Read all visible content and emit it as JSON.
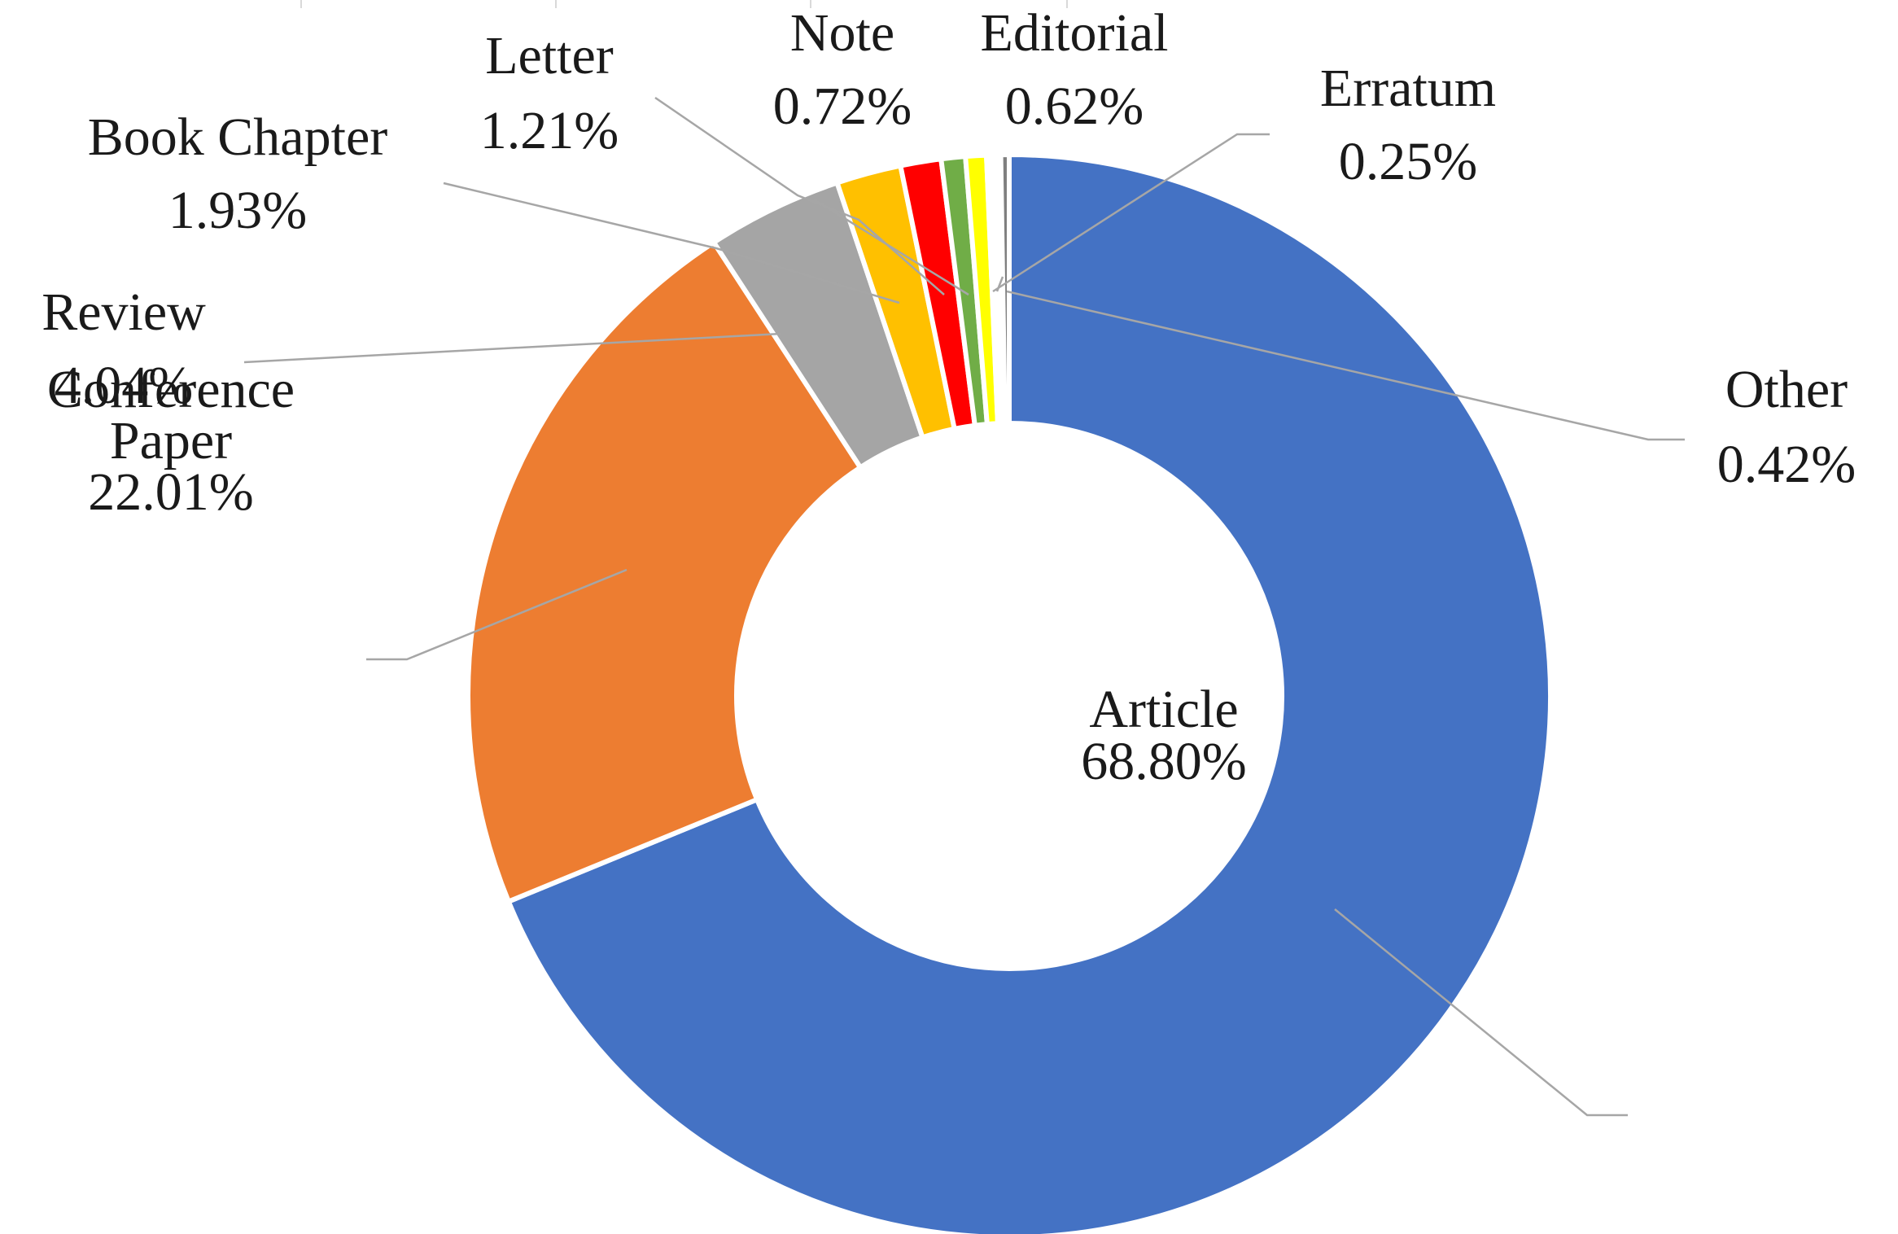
{
  "chart_data": {
    "type": "pie",
    "style": "donut",
    "slices": [
      {
        "label": "Article",
        "value": 68.8,
        "display": "68.80%",
        "color": "#4472C4"
      },
      {
        "label": "Conference Paper",
        "value": 22.01,
        "display": "22.01%",
        "color": "#ED7D31"
      },
      {
        "label": "Review",
        "value": 4.04,
        "display": "4.04%",
        "color": "#A5A5A5"
      },
      {
        "label": "Book Chapter",
        "value": 1.93,
        "display": "1.93%",
        "color": "#FFC000"
      },
      {
        "label": "Letter",
        "value": 1.21,
        "display": "1.21%",
        "color": "#FF0000"
      },
      {
        "label": "Note",
        "value": 0.72,
        "display": "0.72%",
        "color": "#70AD47"
      },
      {
        "label": "Editorial",
        "value": 0.62,
        "display": "0.62%",
        "color": "#FFFF00"
      },
      {
        "label": "Other",
        "value": 0.42,
        "display": "0.42%",
        "color": "#FFFFFF"
      },
      {
        "label": "Erratum",
        "value": 0.25,
        "display": "0.25%",
        "color": "#7F7F7F"
      }
    ],
    "start_angle": "12 o'clock",
    "direction": "clockwise",
    "legend": "none",
    "data_labels": "outside with leader lines"
  }
}
